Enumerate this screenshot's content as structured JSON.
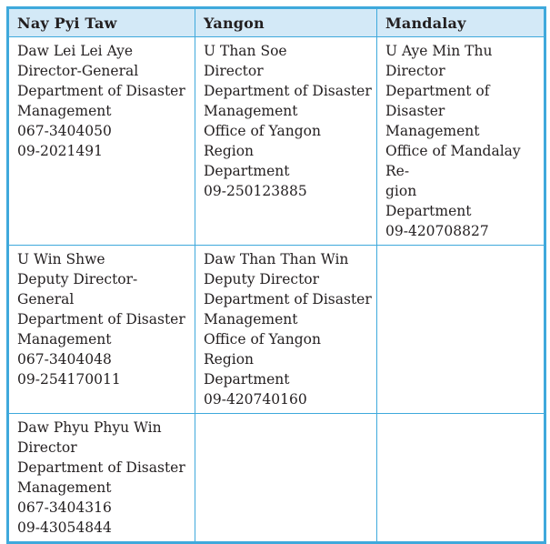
{
  "colors": {
    "border_blue": "#3fa9dc",
    "header_bg": "#d3e9f7",
    "text": "#231f20",
    "page_bg": "#ffffff"
  },
  "table": {
    "columns": [
      {
        "label": "Nay Pyi Taw"
      },
      {
        "label": "Yangon"
      },
      {
        "label": "Mandalay"
      }
    ],
    "rows": [
      {
        "cells": [
          {
            "lines": [
              "Daw Lei Lei Aye",
              "Director-General",
              "Department of Disaster",
              "Management",
              "067-3404050",
              "09-2021491"
            ]
          },
          {
            "lines": [
              "U Than Soe",
              "Director",
              "Department of Disaster",
              "Management",
              "Office of Yangon Region",
              "Department",
              "09-250123885"
            ]
          },
          {
            "lines": [
              "U Aye Min Thu",
              "Director",
              "Department of Disaster",
              "Management",
              "Office of Mandalay Re-",
              "gion",
              "Department",
              "09-420708827"
            ]
          }
        ]
      },
      {
        "cells": [
          {
            "lines": [
              "U Win Shwe",
              "Deputy Director-General",
              "Department of Disaster",
              "Management",
              "067-3404048",
              "09-254170011"
            ]
          },
          {
            "lines": [
              "Daw Than Than Win",
              "Deputy Director",
              "Department of Disaster",
              "Management",
              "Office of Yangon Region",
              "Department",
              "09-420740160"
            ]
          },
          {
            "lines": []
          }
        ]
      },
      {
        "cells": [
          {
            "lines": [
              "Daw Phyu Phyu Win",
              "Director",
              "Department of Disaster",
              "Management",
              "067-3404316",
              "09-43054844"
            ]
          },
          {
            "lines": []
          },
          {
            "lines": []
          }
        ]
      }
    ]
  }
}
